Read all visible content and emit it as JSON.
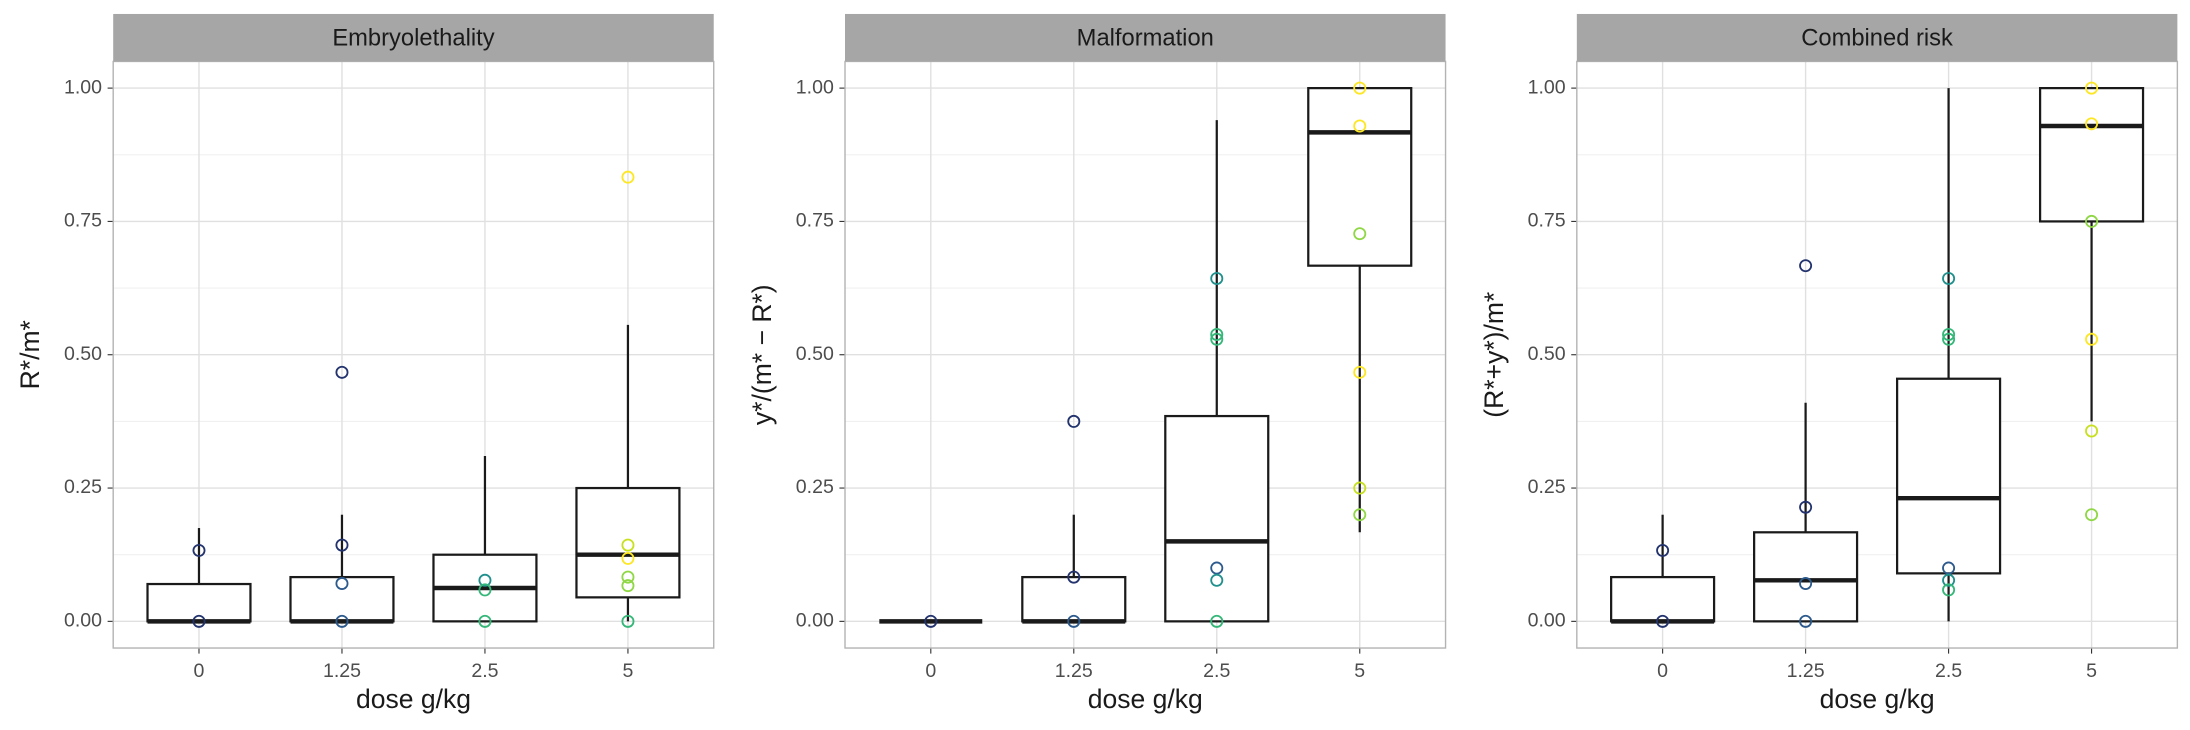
{
  "chart_data": [
    {
      "type": "box",
      "title": "Embryolethality",
      "xlabel": "dose g/kg",
      "ylabel": "R*/m*",
      "categories": [
        "0",
        "1.25",
        "2.5",
        "5"
      ],
      "ylim": [
        -0.05,
        1.05
      ],
      "yticks": [
        {
          "value": 0,
          "label": "0.00"
        },
        {
          "value": 0.25,
          "label": "0.25"
        },
        {
          "value": 0.5,
          "label": "0.50"
        },
        {
          "value": 0.75,
          "label": "0.75"
        },
        {
          "value": 1,
          "label": "1.00"
        }
      ],
      "boxes": [
        {
          "min": 0,
          "q1": 0,
          "median": 0,
          "q3": 0.07,
          "max": 0.175
        },
        {
          "min": 0,
          "q1": 0,
          "median": 0,
          "q3": 0.083,
          "max": 0.2
        },
        {
          "min": 0,
          "q1": 0,
          "median": 0.0625,
          "q3": 0.125,
          "max": 0.31
        },
        {
          "min": 0,
          "q1": 0.045,
          "median": 0.125,
          "q3": 0.25,
          "max": 0.556
        }
      ],
      "points": [
        {
          "values": [
            0.133,
            0
          ],
          "colors": [
            "#23336e",
            "#23336e"
          ]
        },
        {
          "values": [
            0.467,
            0.143,
            0.071,
            0
          ],
          "colors": [
            "#23336e",
            "#23336e",
            "#2d5a8c",
            "#2d5a8c"
          ]
        },
        {
          "values": [
            0.077,
            0.059,
            0
          ],
          "colors": [
            "#20908d",
            "#35b779",
            "#35b779"
          ]
        },
        {
          "values": [
            0.833,
            0.143,
            0.118,
            0.083,
            0.067,
            0
          ],
          "colors": [
            "#fde725",
            "#c8e020",
            "#fde725",
            "#8fd744",
            "#8fd744",
            "#35b779"
          ]
        }
      ]
    },
    {
      "type": "box",
      "title": "Malformation",
      "xlabel": "dose g/kg",
      "ylabel": "y*/(m* − R*)",
      "categories": [
        "0",
        "1.25",
        "2.5",
        "5"
      ],
      "ylim": [
        -0.05,
        1.05
      ],
      "yticks": [
        {
          "value": 0,
          "label": "0.00"
        },
        {
          "value": 0.25,
          "label": "0.25"
        },
        {
          "value": 0.5,
          "label": "0.50"
        },
        {
          "value": 0.75,
          "label": "0.75"
        },
        {
          "value": 1,
          "label": "1.00"
        }
      ],
      "boxes": [
        {
          "min": 0,
          "q1": 0,
          "median": 0,
          "q3": 0,
          "max": 0
        },
        {
          "min": 0,
          "q1": 0,
          "median": 0,
          "q3": 0.083,
          "max": 0.2
        },
        {
          "min": 0,
          "q1": 0,
          "median": 0.15,
          "q3": 0.385,
          "max": 0.94
        },
        {
          "min": 0.167,
          "q1": 0.667,
          "median": 0.917,
          "q3": 1,
          "max": 1
        }
      ],
      "points": [
        {
          "values": [
            0
          ],
          "colors": [
            "#23336e"
          ]
        },
        {
          "values": [
            0.375,
            0.083,
            0
          ],
          "colors": [
            "#23336e",
            "#23336e",
            "#2d5a8c"
          ]
        },
        {
          "values": [
            0.643,
            0.538,
            0.529,
            0.1,
            0.077,
            0
          ],
          "colors": [
            "#20908d",
            "#35b779",
            "#35b779",
            "#2d5a8c",
            "#20908d",
            "#35b779"
          ]
        },
        {
          "values": [
            1,
            0.929,
            0.727,
            0.467,
            0.25,
            0.2
          ],
          "colors": [
            "#fde725",
            "#fde725",
            "#8fd744",
            "#fde725",
            "#c8e020",
            "#8fd744"
          ]
        }
      ]
    },
    {
      "type": "box",
      "title": "Combined risk",
      "xlabel": "dose g/kg",
      "ylabel": "(R*+y*)/m*",
      "categories": [
        "0",
        "1.25",
        "2.5",
        "5"
      ],
      "ylim": [
        -0.05,
        1.05
      ],
      "yticks": [
        {
          "value": 0,
          "label": "0.00"
        },
        {
          "value": 0.25,
          "label": "0.25"
        },
        {
          "value": 0.5,
          "label": "0.50"
        },
        {
          "value": 0.75,
          "label": "0.75"
        },
        {
          "value": 1,
          "label": "1.00"
        }
      ],
      "boxes": [
        {
          "min": 0,
          "q1": 0,
          "median": 0,
          "q3": 0.083,
          "max": 0.2
        },
        {
          "min": 0,
          "q1": 0,
          "median": 0.077,
          "q3": 0.167,
          "max": 0.41
        },
        {
          "min": 0,
          "q1": 0.09,
          "median": 0.231,
          "q3": 0.455,
          "max": 1
        },
        {
          "min": 0.375,
          "q1": 0.75,
          "median": 0.929,
          "q3": 1,
          "max": 1
        }
      ],
      "points": [
        {
          "values": [
            0.133,
            0
          ],
          "colors": [
            "#23336e",
            "#23336e"
          ]
        },
        {
          "values": [
            0.667,
            0.214,
            0.071,
            0
          ],
          "colors": [
            "#23336e",
            "#23336e",
            "#2d5a8c",
            "#2d5a8c"
          ]
        },
        {
          "values": [
            0.643,
            0.538,
            0.529,
            0.1,
            0.077,
            0.059
          ],
          "colors": [
            "#20908d",
            "#35b779",
            "#35b779",
            "#2d5a8c",
            "#20908d",
            "#35b779"
          ]
        },
        {
          "values": [
            1,
            0.933,
            0.75,
            0.529,
            0.357,
            0.2
          ],
          "colors": [
            "#fde725",
            "#fde725",
            "#8fd744",
            "#fde725",
            "#c8e020",
            "#8fd744"
          ]
        }
      ]
    }
  ]
}
